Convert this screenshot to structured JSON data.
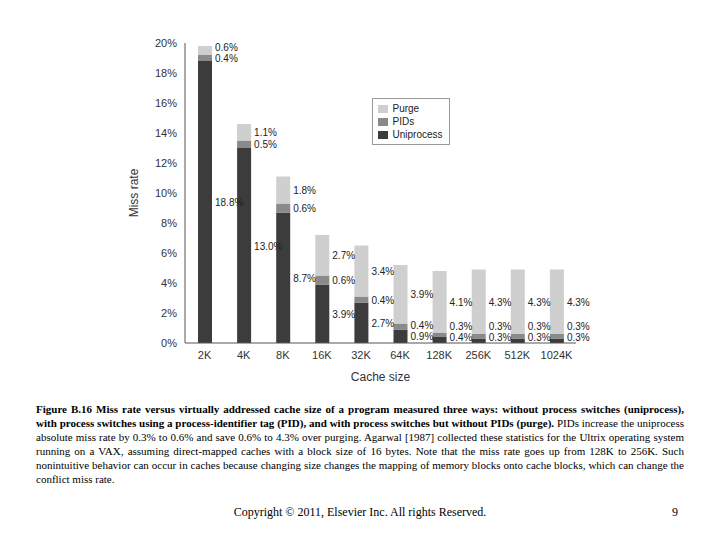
{
  "chart_data": {
    "type": "bar",
    "stacked": true,
    "x_label": "Cache size",
    "y_label": "Miss rate",
    "categories": [
      "2K",
      "4K",
      "8K",
      "16K",
      "32K",
      "64K",
      "128K",
      "256K",
      "512K",
      "1024K"
    ],
    "series": [
      {
        "name": "Uniprocess",
        "color": "#3c3c3c",
        "values": [
          18.8,
          13.0,
          8.7,
          3.9,
          2.7,
          0.9,
          0.4,
          0.3,
          0.3,
          0.3
        ],
        "value_labels": [
          "18.8%",
          "13.0%",
          "8.7%",
          "3.9%",
          "2.7%",
          "0.9%",
          "0.4%",
          "0.3%",
          "0.3%",
          "0.3%"
        ]
      },
      {
        "name": "PIDs",
        "color": "#8a8a8a",
        "values": [
          0.4,
          0.5,
          0.6,
          0.6,
          0.4,
          0.4,
          0.3,
          0.3,
          0.3,
          0.3
        ],
        "value_labels": [
          "0.4%",
          "0.5%",
          "0.6%",
          "0.6%",
          "0.4%",
          "0.4%",
          "0.3%",
          "0.3%",
          "0.3%",
          "0.3%"
        ]
      },
      {
        "name": "Purge",
        "color": "#cfcfcf",
        "values": [
          0.6,
          1.1,
          1.8,
          2.7,
          3.4,
          3.9,
          4.1,
          4.3,
          4.3,
          4.3
        ],
        "value_labels": [
          "0.6%",
          "1.1%",
          "1.8%",
          "2.7%",
          "3.4%",
          "3.9%",
          "4.1%",
          "4.3%",
          "4.3%",
          "4.3%"
        ]
      }
    ],
    "ylim": [
      0,
      20
    ],
    "yticks": [
      {
        "value": 0,
        "label": "0%"
      },
      {
        "value": 2,
        "label": "2%"
      },
      {
        "value": 4,
        "label": "4%"
      },
      {
        "value": 6,
        "label": "6%"
      },
      {
        "value": 8,
        "label": "8%"
      },
      {
        "value": 10,
        "label": "10%"
      },
      {
        "value": 12,
        "label": "12%"
      },
      {
        "value": 14,
        "label": "14%"
      },
      {
        "value": 16,
        "label": "16%"
      },
      {
        "value": 18,
        "label": "18%"
      },
      {
        "value": 20,
        "label": "20%"
      }
    ],
    "grid": false,
    "legend": "upper center",
    "data_labels": true
  },
  "caption": {
    "title": "Figure B.16 Miss rate versus virtually addressed cache size of a program measured three ways: without process switches (uniprocess), with process switches using a process-identifier tag (PID), and with process switches but without PIDs (purge).",
    "text": "PIDs increase the uniprocess absolute miss rate by 0.3% to 0.6% and save 0.6% to 4.3% over purging. Agarwal [1987] collected these statistics for the Ultrix operating system running on a VAX, assuming direct-mapped caches with a block size of 16 bytes. Note that the miss rate goes up from 128K to 256K. Such nonintuitive behavior can occur in caches because changing size changes the mapping of memory blocks onto cache blocks, which can change the conflict miss rate."
  },
  "footer": {
    "copyright": "Copyright © 2011, Elsevier Inc. All rights Reserved.",
    "page": 9
  }
}
